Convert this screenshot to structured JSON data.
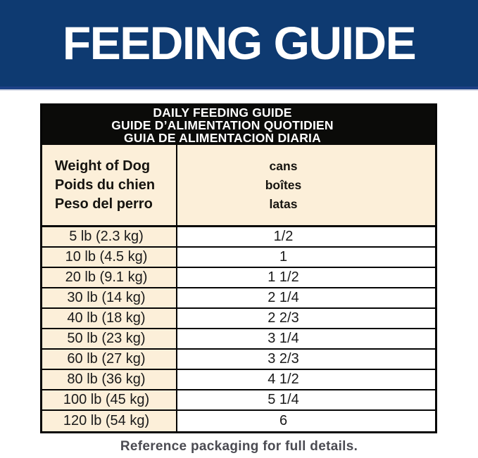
{
  "banner": {
    "title": "FEEDING GUIDE",
    "background_color": "#0e3a71",
    "accent_line_color": "#1d4186",
    "text_color": "#ffffff"
  },
  "table": {
    "title_lines": [
      "DAILY FEEDING GUIDE",
      "GUIDE D’ALIMENTATION QUOTIDIEN",
      "GUIA DE ALIMENTACION DIARIA"
    ],
    "title_band_bg": "#0b0b09",
    "weight_column_header_lines": [
      "Weight of Dog",
      "Poids du chien",
      "Peso del perro"
    ],
    "cans_column_header_lines": [
      "cans",
      "boîtes",
      "latas"
    ],
    "weight_column_bg": "#fcefd9",
    "cans_column_bg": "#ffffff",
    "rows": [
      {
        "weight": "5 lb (2.3 kg)",
        "cans": "1/2"
      },
      {
        "weight": "10 lb (4.5 kg)",
        "cans": "1"
      },
      {
        "weight": "20 lb (9.1 kg)",
        "cans": "1 1/2"
      },
      {
        "weight": "30 lb (14 kg)",
        "cans": "2 1/4"
      },
      {
        "weight": "40 lb (18 kg)",
        "cans": "2 2/3"
      },
      {
        "weight": "50 lb (23 kg)",
        "cans": "3 1/4"
      },
      {
        "weight": "60 lb (27 kg)",
        "cans": "3 2/3"
      },
      {
        "weight": "80 lb (36 kg)",
        "cans": "4 1/2"
      },
      {
        "weight": "100 lb (45 kg)",
        "cans": "5 1/4"
      },
      {
        "weight": "120 lb (54 kg)",
        "cans": "6"
      }
    ]
  },
  "footer": {
    "note": "Reference packaging for full details."
  }
}
